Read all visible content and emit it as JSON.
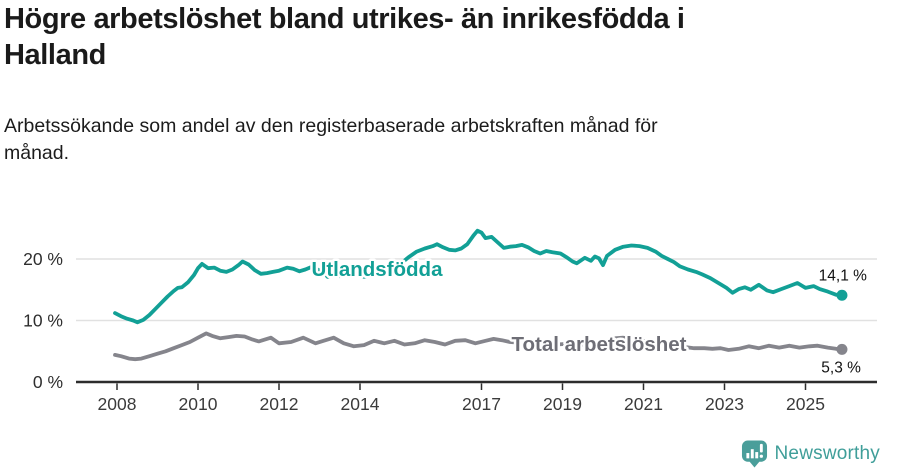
{
  "header": {
    "title": "Högre arbetslöshet bland utrikes- än inrikesfödda i\nHalland",
    "subtitle": "Arbetssökande som andel av den registerbaserade arbetskraften månad för\nmånad."
  },
  "chart_data": {
    "type": "line",
    "title": "Högre arbetslöshet bland utrikes- än inrikesfödda i Halland",
    "subtitle": "Arbetssökande som andel av den registerbaserade arbetskraften månad för månad.",
    "unit": "%",
    "x_axis": {
      "ticks": [
        2008,
        2010,
        2012,
        2014,
        2017,
        2019,
        2021,
        2023,
        2025
      ],
      "range": [
        2007.9,
        2026.3
      ]
    },
    "y_axis": {
      "ticks": [
        {
          "value": 0,
          "label": "0 %"
        },
        {
          "value": 10,
          "label": "10 %"
        },
        {
          "value": 20,
          "label": "20 %"
        }
      ],
      "range": [
        0,
        26
      ],
      "gridlines": true
    },
    "colors": {
      "gridline": "#E1E1E1",
      "axis": "#2D2D2D",
      "tick_label": "#3B3B3B",
      "annotation": "#111111"
    },
    "series": [
      {
        "id": "utlandsfodda",
        "name": "Utlandsfödda",
        "color": "#12A096",
        "label_color": "#12A096",
        "end_label": "14,1 %",
        "end_value": 14.1,
        "points": [
          [
            2007.95,
            11.2
          ],
          [
            2008.1,
            10.7
          ],
          [
            2008.25,
            10.3
          ],
          [
            2008.4,
            10.0
          ],
          [
            2008.5,
            9.7
          ],
          [
            2008.65,
            10.1
          ],
          [
            2008.8,
            10.9
          ],
          [
            2008.95,
            11.9
          ],
          [
            2009.1,
            12.9
          ],
          [
            2009.25,
            13.9
          ],
          [
            2009.4,
            14.8
          ],
          [
            2009.5,
            15.3
          ],
          [
            2009.6,
            15.4
          ],
          [
            2009.75,
            16.2
          ],
          [
            2009.9,
            17.4
          ],
          [
            2010.0,
            18.5
          ],
          [
            2010.1,
            19.2
          ],
          [
            2010.25,
            18.5
          ],
          [
            2010.4,
            18.6
          ],
          [
            2010.55,
            18.1
          ],
          [
            2010.7,
            17.9
          ],
          [
            2010.85,
            18.3
          ],
          [
            2011.0,
            19.0
          ],
          [
            2011.1,
            19.6
          ],
          [
            2011.25,
            19.1
          ],
          [
            2011.4,
            18.2
          ],
          [
            2011.55,
            17.6
          ],
          [
            2011.7,
            17.7
          ],
          [
            2011.85,
            17.9
          ],
          [
            2012.0,
            18.1
          ],
          [
            2012.2,
            18.6
          ],
          [
            2012.35,
            18.4
          ],
          [
            2012.5,
            18.0
          ],
          [
            2012.65,
            18.3
          ],
          [
            2012.8,
            18.7
          ],
          [
            2012.95,
            18.3
          ],
          [
            2013.1,
            17.8
          ],
          [
            2013.2,
            17.1
          ],
          [
            2013.35,
            17.5
          ],
          [
            2013.5,
            17.2
          ],
          [
            2013.65,
            17.5
          ],
          [
            2013.8,
            17.7
          ],
          [
            2013.95,
            17.6
          ],
          [
            2014.1,
            17.1
          ],
          [
            2014.25,
            17.3
          ],
          [
            2014.4,
            17.5
          ],
          [
            2014.6,
            17.8
          ],
          [
            2014.8,
            18.2
          ],
          [
            2015.0,
            19.2
          ],
          [
            2015.2,
            20.3
          ],
          [
            2015.4,
            21.2
          ],
          [
            2015.6,
            21.7
          ],
          [
            2015.8,
            22.1
          ],
          [
            2015.9,
            22.4
          ],
          [
            2016.05,
            21.9
          ],
          [
            2016.2,
            21.5
          ],
          [
            2016.35,
            21.4
          ],
          [
            2016.5,
            21.7
          ],
          [
            2016.65,
            22.4
          ],
          [
            2016.8,
            23.8
          ],
          [
            2016.9,
            24.6
          ],
          [
            2017.0,
            24.3
          ],
          [
            2017.1,
            23.4
          ],
          [
            2017.25,
            23.6
          ],
          [
            2017.4,
            22.7
          ],
          [
            2017.55,
            21.8
          ],
          [
            2017.7,
            22.0
          ],
          [
            2017.85,
            22.1
          ],
          [
            2018.0,
            22.3
          ],
          [
            2018.15,
            21.9
          ],
          [
            2018.3,
            21.3
          ],
          [
            2018.45,
            20.9
          ],
          [
            2018.6,
            21.3
          ],
          [
            2018.75,
            21.1
          ],
          [
            2018.95,
            20.9
          ],
          [
            2019.1,
            20.3
          ],
          [
            2019.25,
            19.6
          ],
          [
            2019.35,
            19.3
          ],
          [
            2019.55,
            20.2
          ],
          [
            2019.7,
            19.7
          ],
          [
            2019.8,
            20.4
          ],
          [
            2019.9,
            20.1
          ],
          [
            2020.0,
            19.0
          ],
          [
            2020.1,
            20.5
          ],
          [
            2020.3,
            21.5
          ],
          [
            2020.5,
            22.0
          ],
          [
            2020.7,
            22.2
          ],
          [
            2020.9,
            22.1
          ],
          [
            2021.1,
            21.8
          ],
          [
            2021.3,
            21.2
          ],
          [
            2021.45,
            20.5
          ],
          [
            2021.6,
            20.0
          ],
          [
            2021.75,
            19.5
          ],
          [
            2021.9,
            18.8
          ],
          [
            2022.1,
            18.3
          ],
          [
            2022.3,
            17.9
          ],
          [
            2022.45,
            17.5
          ],
          [
            2022.65,
            16.9
          ],
          [
            2022.85,
            16.1
          ],
          [
            2023.05,
            15.3
          ],
          [
            2023.2,
            14.5
          ],
          [
            2023.35,
            15.1
          ],
          [
            2023.5,
            15.4
          ],
          [
            2023.65,
            15.0
          ],
          [
            2023.85,
            15.8
          ],
          [
            2024.05,
            14.9
          ],
          [
            2024.2,
            14.6
          ],
          [
            2024.4,
            15.1
          ],
          [
            2024.6,
            15.6
          ],
          [
            2024.8,
            16.1
          ],
          [
            2025.0,
            15.3
          ],
          [
            2025.2,
            15.6
          ],
          [
            2025.35,
            15.1
          ],
          [
            2025.55,
            14.7
          ],
          [
            2025.75,
            14.2
          ],
          [
            2025.9,
            14.1
          ]
        ]
      },
      {
        "id": "total-arbetsloshet",
        "name": "Total arbetslöshet",
        "color": "#85858C",
        "label_color": "#6E6E76",
        "end_label": "5,3 %",
        "end_value": 5.3,
        "points": [
          [
            2007.95,
            4.4
          ],
          [
            2008.1,
            4.2
          ],
          [
            2008.3,
            3.8
          ],
          [
            2008.45,
            3.7
          ],
          [
            2008.6,
            3.8
          ],
          [
            2008.8,
            4.2
          ],
          [
            2009.0,
            4.6
          ],
          [
            2009.2,
            5.0
          ],
          [
            2009.4,
            5.5
          ],
          [
            2009.6,
            6.0
          ],
          [
            2009.8,
            6.5
          ],
          [
            2010.0,
            7.2
          ],
          [
            2010.2,
            7.9
          ],
          [
            2010.35,
            7.5
          ],
          [
            2010.55,
            7.1
          ],
          [
            2010.75,
            7.3
          ],
          [
            2010.95,
            7.5
          ],
          [
            2011.15,
            7.4
          ],
          [
            2011.35,
            6.9
          ],
          [
            2011.5,
            6.6
          ],
          [
            2011.65,
            6.9
          ],
          [
            2011.8,
            7.2
          ],
          [
            2012.0,
            6.3
          ],
          [
            2012.3,
            6.5
          ],
          [
            2012.6,
            7.2
          ],
          [
            2012.9,
            6.3
          ],
          [
            2013.1,
            6.7
          ],
          [
            2013.35,
            7.2
          ],
          [
            2013.6,
            6.3
          ],
          [
            2013.85,
            5.8
          ],
          [
            2014.1,
            6.0
          ],
          [
            2014.35,
            6.7
          ],
          [
            2014.6,
            6.3
          ],
          [
            2014.85,
            6.7
          ],
          [
            2015.1,
            6.1
          ],
          [
            2015.35,
            6.3
          ],
          [
            2015.6,
            6.8
          ],
          [
            2015.85,
            6.5
          ],
          [
            2016.1,
            6.1
          ],
          [
            2016.35,
            6.7
          ],
          [
            2016.6,
            6.8
          ],
          [
            2016.85,
            6.3
          ],
          [
            2017.1,
            6.7
          ],
          [
            2017.3,
            7.0
          ],
          [
            2017.5,
            6.8
          ],
          [
            2017.7,
            6.5
          ],
          [
            2017.9,
            6.4
          ],
          [
            2018.1,
            6.3
          ],
          [
            2018.35,
            6.6
          ],
          [
            2018.6,
            6.3
          ],
          [
            2018.85,
            6.1
          ],
          [
            2019.1,
            6.2
          ],
          [
            2019.35,
            6.1
          ],
          [
            2019.6,
            6.0
          ],
          [
            2019.85,
            6.2
          ],
          [
            2020.1,
            6.7
          ],
          [
            2020.3,
            7.1
          ],
          [
            2020.5,
            7.2
          ],
          [
            2020.75,
            7.0
          ],
          [
            2021.0,
            6.7
          ],
          [
            2021.25,
            6.3
          ],
          [
            2021.5,
            6.0
          ],
          [
            2021.75,
            5.8
          ],
          [
            2022.0,
            5.7
          ],
          [
            2022.25,
            5.5
          ],
          [
            2022.5,
            5.5
          ],
          [
            2022.7,
            5.4
          ],
          [
            2022.9,
            5.5
          ],
          [
            2023.1,
            5.2
          ],
          [
            2023.35,
            5.4
          ],
          [
            2023.6,
            5.8
          ],
          [
            2023.85,
            5.5
          ],
          [
            2024.1,
            5.9
          ],
          [
            2024.35,
            5.6
          ],
          [
            2024.6,
            5.9
          ],
          [
            2024.85,
            5.6
          ],
          [
            2025.1,
            5.8
          ],
          [
            2025.3,
            5.9
          ],
          [
            2025.55,
            5.6
          ],
          [
            2025.75,
            5.4
          ],
          [
            2025.9,
            5.3
          ]
        ]
      }
    ]
  },
  "footer": {
    "brand": "Newsworthy",
    "brand_color": "#3F9E99"
  }
}
